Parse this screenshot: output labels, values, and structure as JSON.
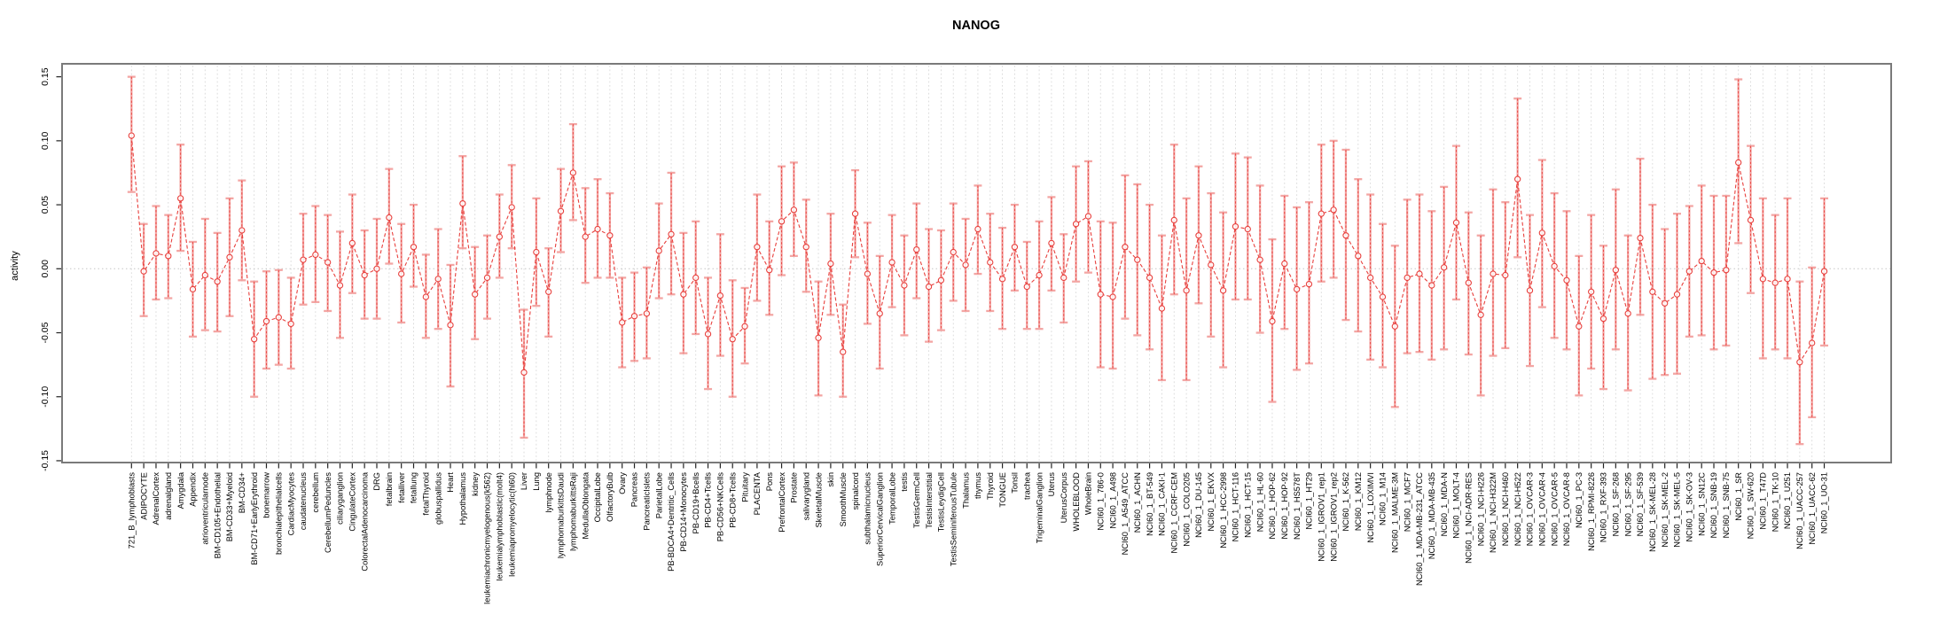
{
  "page": {
    "background": "#ffffff"
  },
  "chart_data": {
    "type": "line",
    "subtype": "points-with-error-bars",
    "title": "NANOG",
    "xlabel": "",
    "ylabel": "activity",
    "ylim": [
      -0.15,
      0.15
    ],
    "yticks": [
      -0.15,
      -0.1,
      -0.05,
      0.0,
      0.05,
      0.1,
      0.15
    ],
    "ytick_labels": [
      "-0.15",
      "-0.10",
      "-0.05",
      "0.00",
      "0.05",
      "0.10",
      "0.15"
    ],
    "grid": "vertical dashed gridline at every category; dotted horizontal line at 0",
    "legend_position": "none",
    "point_style": "open-circle",
    "line_style": "dashed",
    "colors": {
      "series": "#e8403d",
      "error_bar": "#f3a6a4",
      "gridline": "#d9d9d9",
      "zero_line": "#c6c6c6",
      "frame": "#7a7a7a",
      "tick": "#222222",
      "text": "#000000"
    },
    "categories": [
      "721_B_lymphoblasts",
      "ADIPOCYTE",
      "AdrenalCortex",
      "adrenalgland",
      "Amygdala",
      "Appendix",
      "atrioventricularnode",
      "BM-CD105+Endothelial",
      "BM-CD33+Myeloid",
      "BM-CD34+",
      "BM-CD71+EarlyErythroid",
      "bonemarrow",
      "bronchialepithelialcells",
      "CardiacMyocytes",
      "caudatenucleus",
      "cerebellum",
      "CerebellumPeduncles",
      "ciliaryganglion",
      "CingulateCortex",
      "ColorectalAdenocarcinoma",
      "DRG",
      "fetalbrain",
      "fetalliver",
      "fetallung",
      "fetalThyroid",
      "globuspallidus",
      "Heart",
      "Hypothalamus",
      "kidney",
      "leukemiachronicmyelogenous(k562)",
      "leukemialymphoblastic(molt4)",
      "leukemiapromyelocytic(hl60)",
      "Liver",
      "Lung",
      "lymphnode",
      "lymphomaburkittsDaudi",
      "lymphomaburkittsRaji",
      "MedullaOblongata",
      "OccipitalLobe",
      "OlfactoryBulb",
      "Ovary",
      "Pancreas",
      "PancreaticIslets",
      "ParietalLobe",
      "PB-BDCA4+Dentritic_Cells",
      "PB-CD14+Monocytes",
      "PB-CD19+Bcells",
      "PB-CD4+Tcells",
      "PB-CD56+NKCells",
      "PB-CD8+Tcells",
      "Pituitary",
      "PLACENTA",
      "Pons",
      "PrefrontalCortex",
      "Prostate",
      "salivarygland",
      "SkeletalMuscle",
      "skin",
      "SmoothMuscle",
      "spinalcord",
      "subthalamicnucleus",
      "SuperiorCervicalGanglion",
      "TemporalLobe",
      "testis",
      "TestisGermCell",
      "TestisInterstitial",
      "TestisLeydigCell",
      "TestisSeminiferousTubule",
      "Thalamus",
      "thymus",
      "Thyroid",
      "TONGUE",
      "Tonsil",
      "trachea",
      "TrigeminalGanglion",
      "Uterus",
      "UterusCorpus",
      "WHOLEBLOOD",
      "WholeBrain",
      "NCI60_1_786-0",
      "NCI60_1_A498",
      "NCI60_1_A549_ATCC",
      "NCI60_1_ACHN",
      "NCI60_1_BT-549",
      "NCI60_1_CAKI-1",
      "NCI60_1_CCRF-CEM",
      "NCI60_1_COLO205",
      "NCI60_1_DU-145",
      "NCI60_1_EKVX",
      "NCI60_1_HCC-2998",
      "NCI60_1_HCT-116",
      "NCI60_1_HCT-15",
      "NCI60_1_HL-60",
      "NCI60_1_HOP-62",
      "NCI60_1_HOP-92",
      "NCI60_1_HS578T",
      "NCI60_1_HT29",
      "NCI60_1_IGROV1_rep1",
      "NCI60_1_IGROV1_rep2",
      "NCI60_1_K-562",
      "NCI60_1_KM12",
      "NCI60_1_LOXIMVI",
      "NCI60_1_M14",
      "NCI60_1_MALME-3M",
      "NCI60_1_MCF7",
      "NCI60_1_MDA-MB-231_ATCC",
      "NCI60_1_MDA-MB-435",
      "NCI60_1_MDA-N",
      "NCI60_1_MOLT-4",
      "NCI60_1_NCI-ADR-RES",
      "NCI60_1_NCI-H226",
      "NCI60_1_NCI-H322M",
      "NCI60_1_NCI-H460",
      "NCI60_1_NCI-H522",
      "NCI60_1_OVCAR-3",
      "NCI60_1_OVCAR-4",
      "NCI60_1_OVCAR-5",
      "NCI60_1_OVCAR-8",
      "NCI60_1_PC-3",
      "NCI60_1_RPMI-8226",
      "NCI60_1_RXF-393",
      "NCI60_1_SF-268",
      "NCI60_1_SF-295",
      "NCI60_1_SF-539",
      "NCI60_1_SK-MEL-28",
      "NCI60_1_SK-MEL-2",
      "NCI60_1_SK-MEL-5",
      "NCI60_1_SK-OV-3",
      "NCI60_1_SN12C",
      "NCI60_1_SNB-19",
      "NCI60_1_SNB-75",
      "NCI60_1_SR",
      "NCI60_1_SW-620",
      "NCI60_1_T47D",
      "NCI60_1_TK-10",
      "NCI60_1_U251",
      "NCI60_1_UACC-257",
      "NCI60_1_UACC-62",
      "NCI60_1_UO-31"
    ],
    "series": [
      {
        "name": "NANOG activity",
        "values": [
          0.104,
          -0.002,
          0.012,
          0.01,
          0.055,
          -0.016,
          -0.005,
          -0.01,
          0.009,
          0.03,
          -0.055,
          -0.041,
          -0.038,
          -0.043,
          0.007,
          0.011,
          0.005,
          -0.013,
          0.02,
          -0.005,
          0.0,
          0.04,
          -0.004,
          0.017,
          -0.022,
          -0.008,
          -0.044,
          0.051,
          -0.02,
          -0.007,
          0.025,
          0.048,
          -0.081,
          0.013,
          -0.018,
          0.045,
          0.075,
          0.025,
          0.031,
          0.026,
          -0.042,
          -0.037,
          -0.035,
          0.014,
          0.027,
          -0.02,
          -0.007,
          -0.051,
          -0.021,
          -0.055,
          -0.045,
          0.017,
          -0.001,
          0.037,
          0.046,
          0.017,
          -0.054,
          0.004,
          -0.065,
          0.043,
          -0.004,
          -0.035,
          0.005,
          -0.013,
          0.015,
          -0.014,
          -0.009,
          0.013,
          0.003,
          0.031,
          0.005,
          -0.008,
          0.017,
          -0.014,
          -0.005,
          0.02,
          -0.007,
          0.035,
          0.041,
          -0.02,
          -0.022,
          0.017,
          0.007,
          -0.007,
          -0.031,
          0.038,
          -0.017,
          0.026,
          0.003,
          -0.017,
          0.033,
          0.031,
          0.007,
          -0.041,
          0.004,
          -0.016,
          -0.012,
          0.043,
          0.046,
          0.026,
          0.01,
          -0.007,
          -0.022,
          -0.045,
          -0.007,
          -0.004,
          -0.013,
          0.001,
          0.036,
          -0.011,
          -0.036,
          -0.004,
          -0.005,
          0.07,
          -0.017,
          0.028,
          0.002,
          -0.009,
          -0.045,
          -0.018,
          -0.039,
          -0.001,
          -0.035,
          0.024,
          -0.018,
          -0.027,
          -0.02,
          -0.002,
          0.006,
          -0.003,
          -0.001,
          0.083,
          0.038,
          -0.008,
          -0.011,
          -0.008,
          -0.073,
          -0.058,
          -0.002
        ],
        "err_lo": [
          0.06,
          -0.037,
          -0.024,
          -0.023,
          0.014,
          -0.053,
          -0.048,
          -0.049,
          -0.037,
          -0.009,
          -0.1,
          -0.078,
          -0.075,
          -0.078,
          -0.028,
          -0.026,
          -0.033,
          -0.054,
          -0.019,
          -0.039,
          -0.039,
          0.004,
          -0.042,
          -0.014,
          -0.054,
          -0.047,
          -0.092,
          0.016,
          -0.055,
          -0.039,
          -0.007,
          0.016,
          -0.132,
          -0.029,
          -0.053,
          0.013,
          0.038,
          -0.011,
          -0.007,
          -0.007,
          -0.077,
          -0.072,
          -0.07,
          -0.023,
          -0.02,
          -0.066,
          -0.051,
          -0.094,
          -0.068,
          -0.1,
          -0.074,
          -0.025,
          -0.036,
          -0.005,
          0.01,
          -0.018,
          -0.099,
          -0.036,
          -0.1,
          0.009,
          -0.043,
          -0.078,
          -0.03,
          -0.052,
          -0.023,
          -0.057,
          -0.048,
          -0.025,
          -0.033,
          -0.004,
          -0.033,
          -0.047,
          -0.017,
          -0.047,
          -0.047,
          -0.017,
          -0.042,
          -0.01,
          -0.003,
          -0.077,
          -0.078,
          -0.039,
          -0.052,
          -0.063,
          -0.087,
          -0.02,
          -0.087,
          -0.027,
          -0.053,
          -0.077,
          -0.024,
          -0.024,
          -0.05,
          -0.104,
          -0.047,
          -0.079,
          -0.074,
          -0.01,
          -0.007,
          -0.04,
          -0.049,
          -0.071,
          -0.077,
          -0.108,
          -0.066,
          -0.065,
          -0.071,
          -0.063,
          -0.024,
          -0.067,
          -0.099,
          -0.068,
          -0.062,
          0.009,
          -0.076,
          -0.03,
          -0.054,
          -0.063,
          -0.099,
          -0.078,
          -0.094,
          -0.063,
          -0.095,
          -0.036,
          -0.086,
          -0.083,
          -0.082,
          -0.053,
          -0.052,
          -0.063,
          -0.06,
          0.02,
          -0.019,
          -0.07,
          -0.063,
          -0.07,
          -0.137,
          -0.116,
          -0.06
        ],
        "err_hi": [
          0.15,
          0.035,
          0.049,
          0.042,
          0.097,
          0.021,
          0.039,
          0.028,
          0.055,
          0.069,
          -0.01,
          -0.002,
          -0.001,
          -0.007,
          0.043,
          0.049,
          0.042,
          0.029,
          0.058,
          0.03,
          0.039,
          0.078,
          0.035,
          0.05,
          0.011,
          0.031,
          0.003,
          0.088,
          0.017,
          0.026,
          0.058,
          0.081,
          -0.032,
          0.055,
          0.016,
          0.078,
          0.113,
          0.063,
          0.07,
          0.059,
          -0.007,
          -0.003,
          0.001,
          0.051,
          0.075,
          0.028,
          0.037,
          -0.007,
          0.027,
          -0.009,
          -0.015,
          0.058,
          0.037,
          0.08,
          0.083,
          0.054,
          -0.01,
          0.043,
          -0.028,
          0.077,
          0.036,
          0.01,
          0.042,
          0.026,
          0.051,
          0.031,
          0.03,
          0.051,
          0.039,
          0.065,
          0.043,
          0.032,
          0.05,
          0.021,
          0.037,
          0.056,
          0.027,
          0.08,
          0.084,
          0.037,
          0.036,
          0.073,
          0.066,
          0.05,
          0.026,
          0.097,
          0.055,
          0.08,
          0.059,
          0.044,
          0.09,
          0.087,
          0.065,
          0.023,
          0.057,
          0.048,
          0.052,
          0.097,
          0.1,
          0.093,
          0.07,
          0.058,
          0.035,
          0.018,
          0.054,
          0.058,
          0.045,
          0.064,
          0.096,
          0.044,
          0.026,
          0.062,
          0.052,
          0.133,
          0.042,
          0.085,
          0.059,
          0.045,
          0.01,
          0.042,
          0.018,
          0.062,
          0.026,
          0.086,
          0.05,
          0.031,
          0.043,
          0.049,
          0.065,
          0.057,
          0.057,
          0.148,
          0.096,
          0.055,
          0.042,
          0.055,
          -0.01,
          0.001,
          0.055
        ]
      }
    ]
  }
}
